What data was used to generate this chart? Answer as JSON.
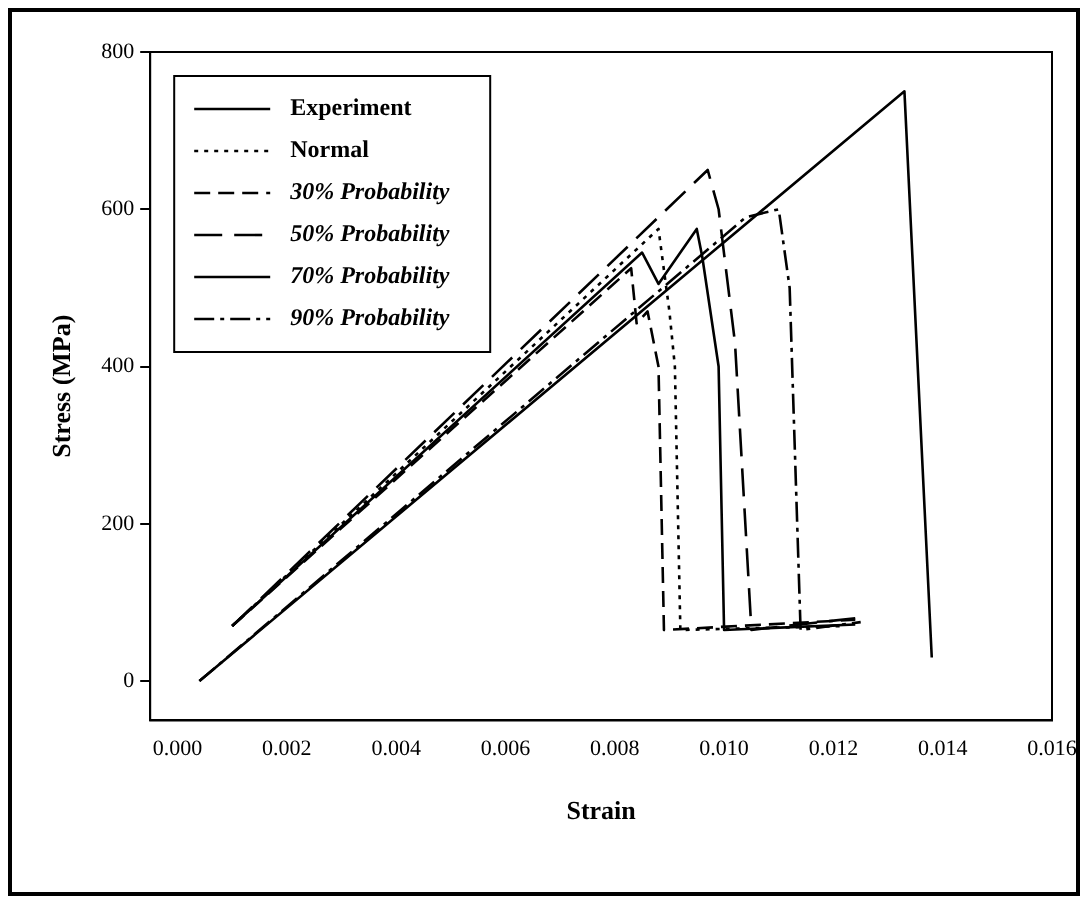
{
  "chart_data": {
    "type": "line",
    "xlabel": "Strain",
    "ylabel": "Stress (MPa)",
    "xlim": [
      -0.0005,
      0.016
    ],
    "xticks": [
      {
        "value": 0,
        "label": "0.000"
      },
      {
        "value": 0.002,
        "label": "0.002"
      },
      {
        "value": 0.004,
        "label": "0.004"
      },
      {
        "value": 0.006,
        "label": "0.006"
      },
      {
        "value": 0.008,
        "label": "0.008"
      },
      {
        "value": 0.01,
        "label": "0.010"
      },
      {
        "value": 0.012,
        "label": "0.012"
      },
      {
        "value": 0.014,
        "label": "0.014"
      },
      {
        "value": 0.016,
        "label": "0.016"
      }
    ],
    "ylim": [
      -50,
      800
    ],
    "yticks": [
      0,
      200,
      400,
      600,
      800
    ],
    "grid": false,
    "legend": "top left",
    "marker": "none",
    "series": [
      {
        "name": "Experiment",
        "color": "#000000",
        "line_style": "solid",
        "x": [
          0.0004,
          0.0133,
          0.0138
        ],
        "values": [
          0,
          750,
          30
        ]
      },
      {
        "name": "Normal",
        "color": "#000000",
        "line_style": "dotted",
        "x": [
          0.001,
          0.0088,
          0.009,
          0.0091,
          0.0092,
          0.0122
        ],
        "values": [
          70,
          575,
          470,
          400,
          65,
          70
        ]
      },
      {
        "name": "30% Probability",
        "color": "#000000",
        "line_style": "dashed",
        "x": [
          0.001,
          0.0083,
          0.0084,
          0.0086,
          0.0088,
          0.0089,
          0.0124
        ],
        "values": [
          70,
          525,
          455,
          470,
          400,
          65,
          78
        ]
      },
      {
        "name": "50% Probability",
        "color": "#000000",
        "line_style": "longdash",
        "x": [
          0.001,
          0.0097,
          0.0099,
          0.0102,
          0.0105,
          0.0124
        ],
        "values": [
          70,
          650,
          600,
          430,
          65,
          80
        ]
      },
      {
        "name": "70% Probability",
        "color": "#000000",
        "line_style": "solid",
        "x": [
          0.001,
          0.0085,
          0.0088,
          0.0095,
          0.0096,
          0.0099,
          0.01,
          0.0124
        ],
        "values": [
          70,
          545,
          505,
          575,
          540,
          400,
          65,
          72
        ]
      },
      {
        "name": "90% Probability",
        "color": "#000000",
        "line_style": "dashdot",
        "x": [
          0.0004,
          0.0104,
          0.011,
          0.0112,
          0.0114,
          0.0125
        ],
        "values": [
          0,
          590,
          600,
          500,
          65,
          75
        ]
      }
    ]
  }
}
